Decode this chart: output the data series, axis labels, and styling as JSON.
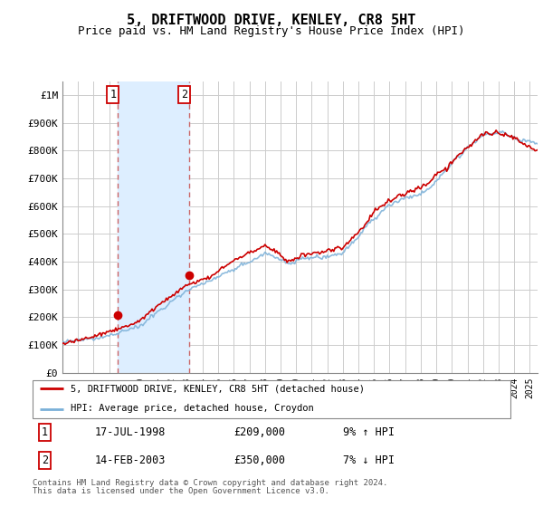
{
  "title": "5, DRIFTWOOD DRIVE, KENLEY, CR8 5HT",
  "subtitle": "Price paid vs. HM Land Registry's House Price Index (HPI)",
  "title_fontsize": 11,
  "subtitle_fontsize": 9,
  "ylim": [
    0,
    1050000
  ],
  "xlim_start": 1995.0,
  "xlim_end": 2025.5,
  "ytick_labels": [
    "£0",
    "£100K",
    "£200K",
    "£300K",
    "£400K",
    "£500K",
    "£600K",
    "£700K",
    "£800K",
    "£900K",
    "£1M"
  ],
  "ytick_values": [
    0,
    100000,
    200000,
    300000,
    400000,
    500000,
    600000,
    700000,
    800000,
    900000,
    1000000
  ],
  "background_color": "#ffffff",
  "plot_bg_color": "#ffffff",
  "grid_color": "#cccccc",
  "hpi_color": "#7ab0d8",
  "price_color": "#cc0000",
  "span_color": "#ddeeff",
  "transaction1_year": 1998.54,
  "transaction1_price": 209000,
  "transaction1_label": "1",
  "transaction1_date": "17-JUL-1998",
  "transaction1_hpi": "9% ↑ HPI",
  "transaction2_year": 2003.12,
  "transaction2_price": 350000,
  "transaction2_label": "2",
  "transaction2_date": "14-FEB-2003",
  "transaction2_hpi": "7% ↓ HPI",
  "legend_line1": "5, DRIFTWOOD DRIVE, KENLEY, CR8 5HT (detached house)",
  "legend_line2": "HPI: Average price, detached house, Croydon",
  "footer1": "Contains HM Land Registry data © Crown copyright and database right 2024.",
  "footer2": "This data is licensed under the Open Government Licence v3.0."
}
